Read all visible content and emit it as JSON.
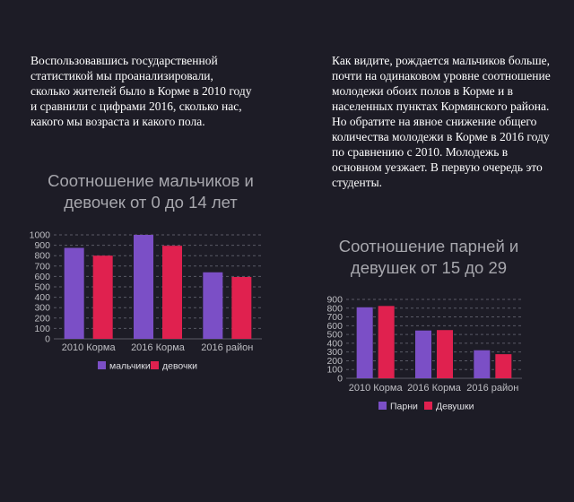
{
  "left_text": "Воспользовавшись государственной статистикой мы проанализировали, сколько жителей было в Корме в 2010 году и сравнили с цифрами 2016, сколько нас,  какого мы возраста и какого пола.",
  "right_text": "Как видите, рождается мальчиков больше, почти на одинаковом уровне соотношение молодежи обоих полов в Корме и в населенных пунктах Кормянского района. Но обратите на явное снижение общего количества молодежи в Корме в 2016 году по сравнению с 2010. Молодежь в основном уезжает. В первую очередь это студенты.",
  "colors": {
    "series1": "#7b4fc6",
    "series2": "#e0214f",
    "grid": "#5a5a66",
    "tick": "#bdbdc2"
  },
  "chart_data": [
    {
      "type": "bar",
      "title": "Соотношение мальчиков и девочек от 0 до 14 лет",
      "categories": [
        "2010 Корма",
        "2016 Корма",
        "2016 район"
      ],
      "series": [
        {
          "name": "мальчики",
          "values": [
            875,
            1000,
            640
          ]
        },
        {
          "name": "девочки",
          "values": [
            800,
            895,
            595
          ]
        }
      ],
      "ylim": [
        0,
        1000
      ],
      "yticks": [
        0,
        100,
        200,
        300,
        400,
        500,
        600,
        700,
        800,
        900,
        1000
      ],
      "grid": true,
      "legend": "bottom"
    },
    {
      "type": "bar",
      "title": "Соотношение парней и девушек от 15 до 29",
      "categories": [
        "2010 Корма",
        "2016 Корма",
        "2016 район"
      ],
      "series": [
        {
          "name": "Парни",
          "values": [
            810,
            545,
            320
          ]
        },
        {
          "name": "Девушки",
          "values": [
            825,
            550,
            275
          ]
        }
      ],
      "ylim": [
        0,
        900
      ],
      "yticks": [
        0,
        100,
        200,
        300,
        400,
        500,
        600,
        700,
        800,
        900
      ],
      "grid": true,
      "legend": "bottom"
    }
  ]
}
